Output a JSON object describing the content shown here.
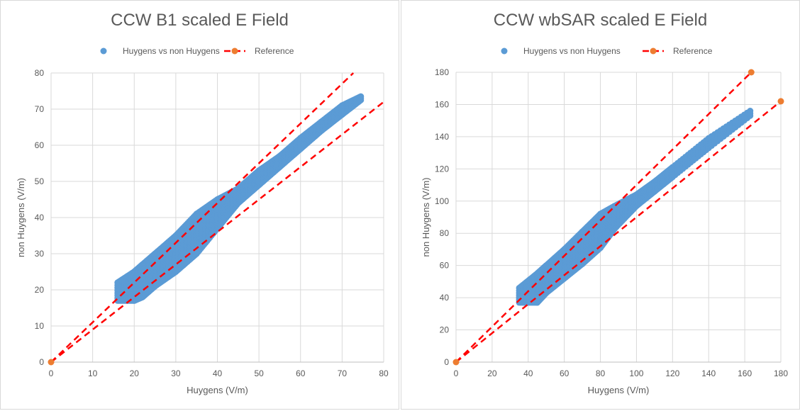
{
  "chart_data": [
    {
      "type": "scatter",
      "title": "CCW B1 scaled E Field",
      "xlabel": "Huygens (V/m)",
      "ylabel": "non Huygens (V/m)",
      "xlim": [
        0,
        80
      ],
      "ylim": [
        0,
        80
      ],
      "xticks": [
        0,
        10,
        20,
        30,
        40,
        50,
        60,
        70,
        80
      ],
      "yticks": [
        0,
        10,
        20,
        30,
        40,
        50,
        60,
        70,
        80
      ],
      "grid": true,
      "legend_position": "top",
      "series": [
        {
          "name": "Huygens vs non Huygens",
          "color": "#5b9bd5",
          "band": {
            "x": [
              16,
              20,
              22,
              25,
              30,
              35,
              40,
              45,
              50,
              55,
              60,
              65,
              70,
              74.5
            ],
            "y_low": [
              17,
              17,
              18,
              21,
              25,
              30,
              37,
              44,
              49,
              54,
              59,
              64,
              68.5,
              72.5
            ],
            "y_high": [
              22,
              25,
              27,
              30,
              35,
              41,
              45,
              48,
              53,
              57,
              62,
              66.5,
              71,
              73.5
            ]
          }
        },
        {
          "name": "Reference",
          "color": "#ff0000",
          "marker_color": "#ed7d31",
          "lines": [
            {
              "x": [
                0,
                72.7
              ],
              "y": [
                0,
                80
              ]
            },
            {
              "x": [
                0,
                80
              ],
              "y": [
                0,
                72
              ]
            }
          ],
          "markers": [
            {
              "x": 0,
              "y": 0
            }
          ]
        }
      ]
    },
    {
      "type": "scatter",
      "title": "CCW wbSAR scaled E Field",
      "xlabel": "Huygens (V/m)",
      "ylabel": "non Huygens (V/m)",
      "xlim": [
        0,
        180
      ],
      "ylim": [
        0,
        180
      ],
      "xticks": [
        0,
        20,
        40,
        60,
        80,
        100,
        120,
        140,
        160,
        180
      ],
      "yticks": [
        0,
        20,
        40,
        60,
        80,
        100,
        120,
        140,
        160,
        180
      ],
      "grid": true,
      "legend_position": "top",
      "series": [
        {
          "name": "Huygens vs non Huygens",
          "color": "#5b9bd5",
          "band": {
            "x": [
              35,
              45,
              50,
              60,
              70,
              80,
              88,
              100,
              110,
              120,
              140,
              163
            ],
            "y_low": [
              37,
              37,
              43,
              52,
              61,
              71,
              83,
              97,
              106,
              115,
              133,
              153
            ],
            "y_high": [
              46,
              55,
              60,
              70,
              81,
              92,
              97,
              104,
              112,
              121,
              139,
              156
            ]
          }
        },
        {
          "name": "Reference",
          "color": "#ff0000",
          "marker_color": "#ed7d31",
          "lines": [
            {
              "x": [
                0,
                163.6
              ],
              "y": [
                0,
                180
              ]
            },
            {
              "x": [
                0,
                180
              ],
              "y": [
                0,
                162
              ]
            }
          ],
          "markers": [
            {
              "x": 0,
              "y": 0
            },
            {
              "x": 163.6,
              "y": 180
            },
            {
              "x": 180,
              "y": 162
            }
          ]
        }
      ]
    }
  ]
}
